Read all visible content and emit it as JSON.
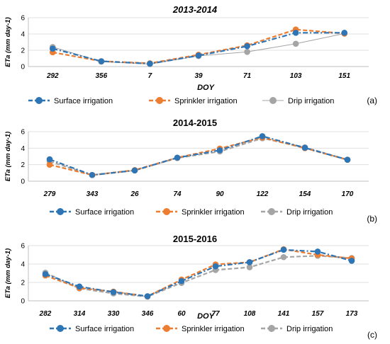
{
  "colors": {
    "surface": "#2E75B6",
    "sprinkler": "#ED7D31",
    "drip": "#A5A5A5",
    "axis": "#000000",
    "grid": "#E0E0E0"
  },
  "chart_data": [
    {
      "type": "line",
      "title": "2013-2014",
      "xlabel": "DOY",
      "ylabel": "ETa (mm day-1)",
      "panel_label": "(a)",
      "categories": [
        "292",
        "356",
        "7",
        "39",
        "71",
        "103",
        "151"
      ],
      "ylim": [
        0,
        6
      ],
      "yticks": [
        "0",
        "2",
        "4",
        "6"
      ],
      "grid": true,
      "legend_position": "bottom",
      "series": [
        {
          "name": "Surface irrigation",
          "values": [
            2.2,
            0.65,
            0.35,
            1.35,
            2.5,
            4.15,
            4.15
          ]
        },
        {
          "name": "Sprinkler irrigation",
          "values": [
            1.75,
            0.65,
            0.4,
            1.45,
            2.6,
            4.55,
            4.05
          ]
        },
        {
          "name": "Drip irrigation",
          "values": [
            2.4,
            0.6,
            0.3,
            1.3,
            1.8,
            2.8,
            4.05
          ]
        }
      ]
    },
    {
      "type": "line",
      "title": "2014-2015",
      "xlabel": "",
      "ylabel": "ETa (mm day-1)",
      "panel_label": "(b)",
      "categories": [
        "279",
        "343",
        "26",
        "74",
        "90",
        "122",
        "154",
        "170"
      ],
      "ylim": [
        0,
        6
      ],
      "yticks": [
        "0",
        "2",
        "4",
        "6"
      ],
      "grid": true,
      "legend_position": "bottom",
      "series": [
        {
          "name": "Surface irrigation",
          "values": [
            2.65,
            0.75,
            1.3,
            2.85,
            3.75,
            5.45,
            4.05,
            2.6
          ]
        },
        {
          "name": "Sprinkler irrigation",
          "values": [
            2.0,
            0.75,
            1.35,
            2.85,
            3.95,
            5.3,
            4.0,
            2.6
          ]
        },
        {
          "name": "Drip irrigation",
          "values": [
            2.4,
            0.75,
            1.3,
            2.8,
            3.6,
            5.2,
            4.1,
            2.6
          ]
        }
      ]
    },
    {
      "type": "line",
      "title": "2015-2016",
      "xlabel": "DOY",
      "ylabel": "ETa (mm day-1)",
      "panel_label": "(c)",
      "categories": [
        "282",
        "314",
        "330",
        "346",
        "60",
        "77",
        "108",
        "141",
        "157",
        "173"
      ],
      "ylim": [
        0,
        6
      ],
      "yticks": [
        "0",
        "2",
        "4",
        "6"
      ],
      "grid": true,
      "legend_position": "bottom",
      "series": [
        {
          "name": "Surface irrigation",
          "values": [
            2.9,
            1.55,
            0.95,
            0.5,
            2.15,
            3.75,
            4.2,
            5.55,
            5.35,
            4.35
          ]
        },
        {
          "name": "Sprinkler irrigation",
          "values": [
            2.75,
            1.4,
            1.0,
            0.5,
            2.3,
            3.95,
            4.2,
            5.6,
            5.0,
            4.6
          ]
        },
        {
          "name": "Drip irrigation",
          "values": [
            3.05,
            1.35,
            0.8,
            0.45,
            1.95,
            3.35,
            3.65,
            4.75,
            4.9,
            4.65
          ]
        }
      ]
    }
  ]
}
